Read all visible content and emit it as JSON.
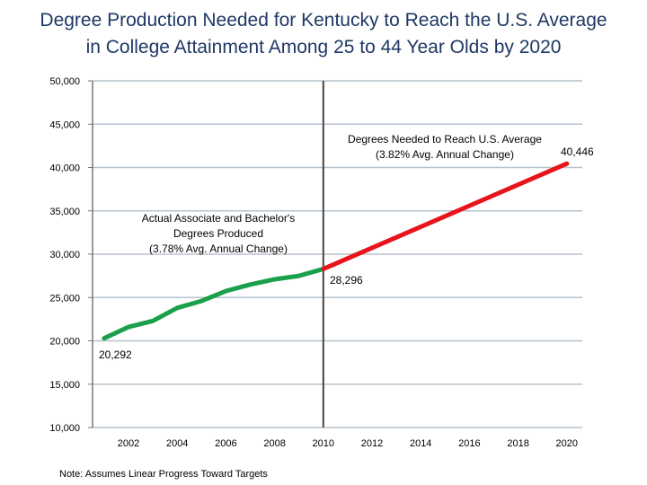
{
  "chart_data": {
    "type": "line",
    "title_line1": "Degree Production Needed for Kentucky to Reach the U.S. Average",
    "title_line2": "in College Attainment Among 25 to 44 Year Olds by 2020",
    "xlabel": "",
    "ylabel": "",
    "ylim": [
      10000,
      50000
    ],
    "xlim": [
      2001,
      2020
    ],
    "grid": true,
    "y_ticks": [
      "50,000",
      "45,000",
      "40,000",
      "35,000",
      "30,000",
      "25,000",
      "20,000",
      "15,000",
      "10,000"
    ],
    "y_tick_values": [
      50000,
      45000,
      40000,
      35000,
      30000,
      25000,
      20000,
      15000,
      10000
    ],
    "x_ticks": [
      "2002",
      "2004",
      "2006",
      "2008",
      "2010",
      "2012",
      "2014",
      "2016",
      "2018",
      "2020"
    ],
    "x_tick_values": [
      2002,
      2004,
      2006,
      2008,
      2010,
      2012,
      2014,
      2016,
      2018,
      2020
    ],
    "reference_line_x": 2010,
    "series": [
      {
        "color": "#1aa04a",
        "x": [
          2001,
          2002,
          2003,
          2004,
          2005,
          2006,
          2007,
          2008,
          2009,
          2010
        ],
        "y": [
          20292,
          21600,
          22300,
          23800,
          24600,
          25750,
          26500,
          27100,
          27500,
          28296
        ]
      },
      {
        "color": "#e8141c",
        "x": [
          2010,
          2020
        ],
        "y": [
          28296,
          40446
        ]
      }
    ],
    "annotations": {
      "actual_1": "Actual Associate and Bachelor's",
      "actual_2": "Degrees Produced",
      "actual_3": "(3.78% Avg. Annual Change)",
      "needed_1": "Degrees Needed to Reach U.S. Average",
      "needed_2": "(3.82% Avg. Annual Change)",
      "label_start": "20,292",
      "label_2010": "28,296",
      "label_end": "40,446"
    },
    "note": "Note: Assumes Linear Progress Toward Targets"
  }
}
